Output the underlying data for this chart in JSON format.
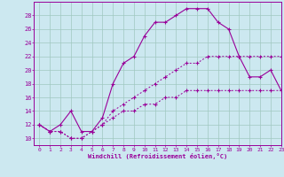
{
  "xlabel": "Windchill (Refroidissement éolien,°C)",
  "background_color": "#cce8f0",
  "grid_color": "#a0c8c0",
  "line_color": "#990099",
  "line1_x": [
    0,
    1,
    2,
    3,
    4,
    5,
    6,
    7,
    8,
    9,
    10,
    11,
    12,
    13,
    14,
    15,
    16,
    17,
    18,
    19,
    20,
    21,
    22,
    23
  ],
  "line1_y": [
    12,
    11,
    11,
    10,
    10,
    11,
    12,
    13,
    14,
    14,
    15,
    15,
    16,
    16,
    17,
    17,
    17,
    17,
    17,
    17,
    17,
    17,
    17,
    17
  ],
  "line2_x": [
    0,
    1,
    2,
    3,
    4,
    5,
    6,
    7,
    8,
    9,
    10,
    11,
    12,
    13,
    14,
    15,
    16,
    17,
    18,
    19,
    20,
    21,
    22,
    23
  ],
  "line2_y": [
    12,
    11,
    11,
    10,
    10,
    11,
    12,
    14,
    15,
    16,
    17,
    18,
    19,
    20,
    21,
    21,
    22,
    22,
    22,
    22,
    22,
    22,
    22,
    22
  ],
  "line3_x": [
    0,
    1,
    2,
    3,
    4,
    5,
    6,
    7,
    8,
    9,
    10,
    11,
    12,
    13,
    14,
    15,
    16,
    17,
    18,
    19,
    20,
    21,
    22,
    23
  ],
  "line3_y": [
    12,
    11,
    12,
    14,
    11,
    11,
    13,
    18,
    21,
    22,
    25,
    27,
    27,
    28,
    29,
    29,
    29,
    27,
    26,
    22,
    19,
    19,
    20,
    17
  ],
  "xlim": [
    -0.5,
    23
  ],
  "ylim": [
    9,
    30
  ],
  "xticks": [
    0,
    1,
    2,
    3,
    4,
    5,
    6,
    7,
    8,
    9,
    10,
    11,
    12,
    13,
    14,
    15,
    16,
    17,
    18,
    19,
    20,
    21,
    22,
    23
  ],
  "yticks": [
    10,
    12,
    14,
    16,
    18,
    20,
    22,
    24,
    26,
    28
  ]
}
